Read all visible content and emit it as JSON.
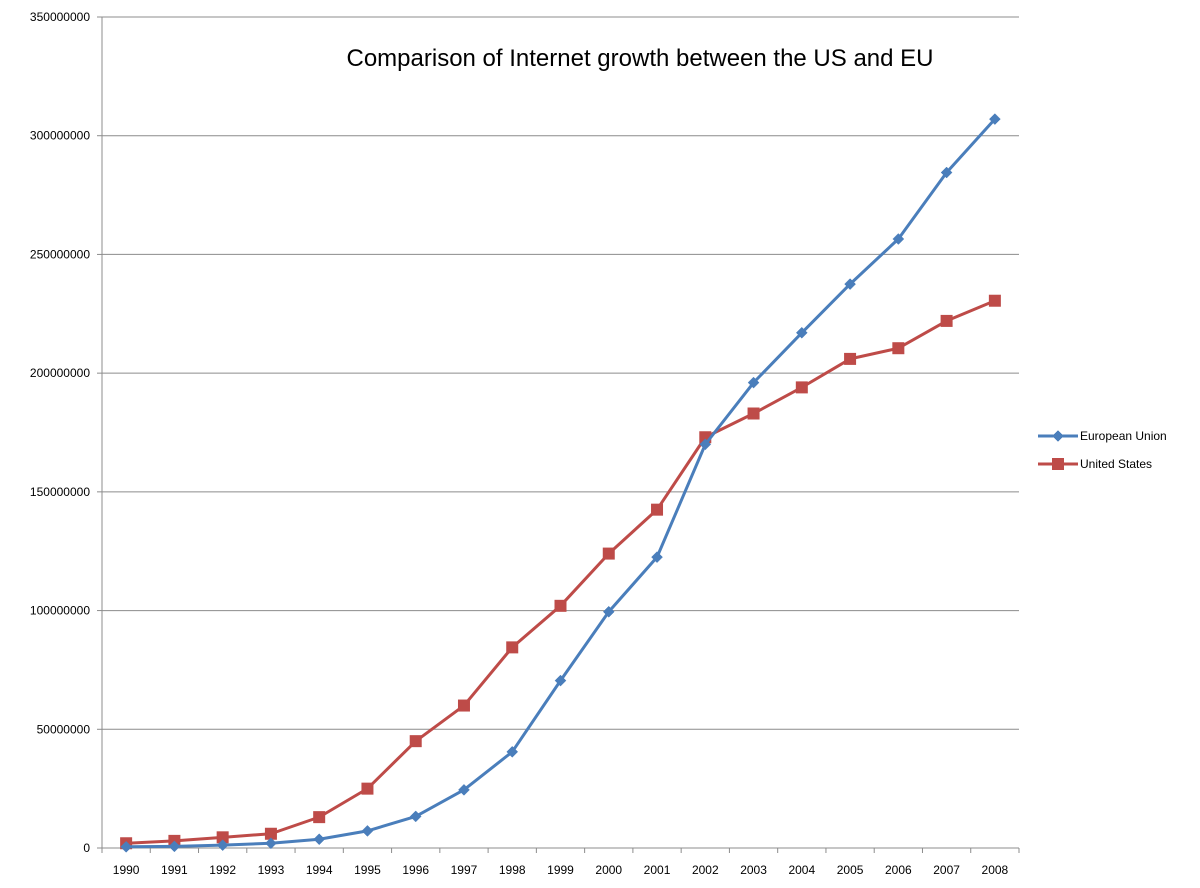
{
  "chart_data": {
    "type": "line",
    "title": "Comparison of Internet growth between the US and EU",
    "xlabel": "",
    "ylabel": "",
    "categories": [
      "1990",
      "1991",
      "1992",
      "1993",
      "1994",
      "1995",
      "1996",
      "1997",
      "1998",
      "1999",
      "2000",
      "2001",
      "2002",
      "2003",
      "2004",
      "2005",
      "2006",
      "2007",
      "2008"
    ],
    "ylim": [
      0,
      350000000
    ],
    "yticks": [
      "0",
      "50000000",
      "100000000",
      "150000000",
      "200000000",
      "250000000",
      "300000000",
      "350000000"
    ],
    "grid": true,
    "legend_position": "right",
    "series": [
      {
        "name": "European Union",
        "color": "#4a7ebb",
        "marker": "diamond",
        "values": [
          500000,
          700000,
          1200000,
          2000000,
          3700000,
          7200000,
          13300000,
          24500000,
          40500000,
          70500000,
          99500000,
          122500000,
          170000000,
          196000000,
          217000000,
          237500000,
          256500000,
          284500000,
          307000000
        ]
      },
      {
        "name": "United States",
        "color": "#be4b48",
        "marker": "square",
        "values": [
          2000000,
          3000000,
          4500000,
          6000000,
          13000000,
          25000000,
          45000000,
          60000000,
          84500000,
          102000000,
          124000000,
          142500000,
          173000000,
          183000000,
          194000000,
          206000000,
          210500000,
          222000000,
          230500000
        ]
      }
    ]
  }
}
